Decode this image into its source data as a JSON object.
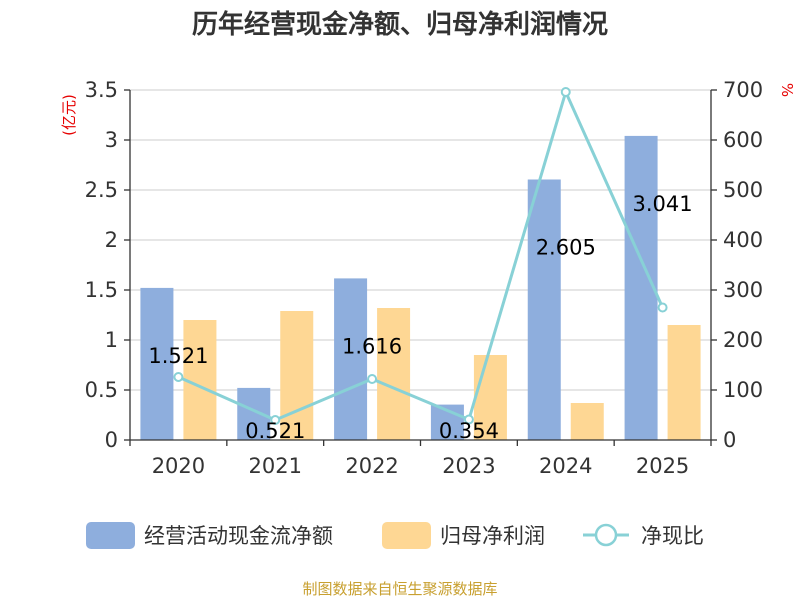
{
  "chart_data": {
    "type": "bar",
    "title": "历年经营现金净额、归母净利润情况",
    "categories": [
      "2020",
      "2021",
      "2022",
      "2023",
      "2024",
      "2025"
    ],
    "series": [
      {
        "name": "经营活动现金流净额",
        "type": "bar",
        "axis": "left",
        "color": "#8eaedd",
        "values": [
          1.521,
          0.521,
          1.616,
          0.354,
          2.605,
          3.041
        ]
      },
      {
        "name": "归母净利润",
        "type": "bar",
        "axis": "left",
        "color": "#fed794",
        "values": [
          1.2,
          1.29,
          1.32,
          0.85,
          0.37,
          1.15
        ]
      },
      {
        "name": "净现比",
        "type": "line",
        "axis": "right",
        "color": "#88d1d6",
        "values": [
          126,
          40,
          122,
          41,
          696,
          265
        ]
      }
    ],
    "data_labels": [
      "1.521",
      "0.521",
      "1.616",
      "0.354",
      "2.605",
      "3.041"
    ],
    "y_left": {
      "unit": "(亿元)",
      "range": [
        0,
        3.5
      ],
      "ticks": [
        "0",
        "0.5",
        "1",
        "1.5",
        "2",
        "2.5",
        "3",
        "3.5"
      ]
    },
    "y_right": {
      "unit": "%",
      "range": [
        0,
        700
      ],
      "ticks": [
        "0",
        "100",
        "200",
        "300",
        "400",
        "500",
        "600",
        "700"
      ]
    },
    "legend": [
      "经营活动现金流净额",
      "归母净利润",
      "净现比"
    ],
    "legend_position": "bottom",
    "grid": true
  },
  "source": "制图数据来自恒生聚源数据库"
}
